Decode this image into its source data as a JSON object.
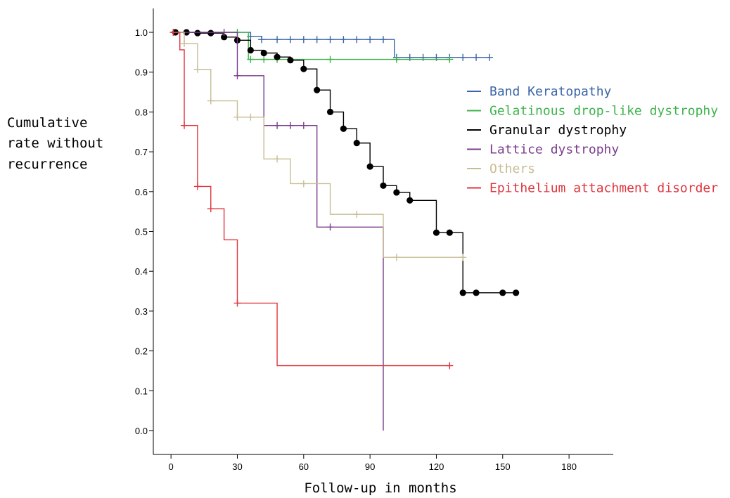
{
  "chart_data": {
    "type": "line",
    "subtype": "kaplan-meier step",
    "title": "",
    "xlabel": "Follow-up in months",
    "ylabel_lines": [
      "Cumulative",
      "rate without",
      "recurrence"
    ],
    "xlim": [
      -8,
      200
    ],
    "ylim": [
      -0.06,
      1.06
    ],
    "x_ticks": [
      0,
      30,
      60,
      90,
      120,
      150,
      180
    ],
    "x_tick_labels": [
      "0",
      "30",
      "60",
      "90",
      "120",
      "150",
      "180"
    ],
    "y_ticks": [
      0.0,
      0.1,
      0.2,
      0.3,
      0.4,
      0.5,
      0.6,
      0.7,
      0.8,
      0.9,
      1.0
    ],
    "y_tick_labels": [
      "0.0",
      "0.1",
      "0.2",
      "0.3",
      "0.4",
      "0.5",
      "0.6",
      "0.7",
      "0.8",
      "0.9",
      "1.0"
    ],
    "grid": false,
    "legend_position": "right",
    "series": [
      {
        "name": "Band Keratopathy",
        "color": "#3a65a8",
        "marker": "plus",
        "steps": [
          [
            0,
            1.0
          ],
          [
            36,
            0.99
          ],
          [
            41,
            0.982
          ],
          [
            101,
            0.937
          ],
          [
            144,
            0.937
          ]
        ],
        "censored": [
          [
            36,
            0.99
          ],
          [
            41,
            0.982
          ],
          [
            48,
            0.982
          ],
          [
            54,
            0.982
          ],
          [
            60,
            0.982
          ],
          [
            66,
            0.982
          ],
          [
            72,
            0.982
          ],
          [
            78,
            0.982
          ],
          [
            84,
            0.982
          ],
          [
            90,
            0.982
          ],
          [
            96,
            0.982
          ],
          [
            102,
            0.937
          ],
          [
            108,
            0.937
          ],
          [
            114,
            0.937
          ],
          [
            120,
            0.937
          ],
          [
            126,
            0.937
          ],
          [
            132,
            0.937
          ],
          [
            138,
            0.937
          ],
          [
            144,
            0.937
          ]
        ]
      },
      {
        "name": "Gelatinous drop-like dystrophy",
        "color": "#3cb34a",
        "marker": "plus",
        "steps": [
          [
            0,
            1.0
          ],
          [
            35,
            0.932
          ],
          [
            126,
            0.932
          ]
        ],
        "censored": [
          [
            30,
            1.0
          ],
          [
            36,
            0.932
          ],
          [
            42,
            0.932
          ],
          [
            48,
            0.932
          ],
          [
            72,
            0.932
          ],
          [
            102,
            0.932
          ],
          [
            126,
            0.932
          ]
        ]
      },
      {
        "name": "Granular dystrophy",
        "color": "#000000",
        "marker": "dot",
        "steps": [
          [
            0,
            1.0
          ],
          [
            12,
            0.998
          ],
          [
            24,
            0.988
          ],
          [
            30,
            0.98
          ],
          [
            36,
            0.955
          ],
          [
            42,
            0.948
          ],
          [
            48,
            0.938
          ],
          [
            54,
            0.93
          ],
          [
            60,
            0.908
          ],
          [
            66,
            0.855
          ],
          [
            72,
            0.8
          ],
          [
            78,
            0.758
          ],
          [
            84,
            0.722
          ],
          [
            90,
            0.663
          ],
          [
            96,
            0.615
          ],
          [
            102,
            0.598
          ],
          [
            108,
            0.578
          ],
          [
            120,
            0.497
          ],
          [
            132,
            0.346
          ],
          [
            156,
            0.346
          ]
        ],
        "censored": [
          [
            2,
            1.0
          ],
          [
            7,
            1.0
          ],
          [
            12,
            0.998
          ],
          [
            18,
            0.998
          ],
          [
            24,
            0.988
          ],
          [
            30,
            0.98
          ],
          [
            36,
            0.955
          ],
          [
            42,
            0.948
          ],
          [
            48,
            0.938
          ],
          [
            54,
            0.93
          ],
          [
            60,
            0.908
          ],
          [
            66,
            0.855
          ],
          [
            72,
            0.8
          ],
          [
            78,
            0.758
          ],
          [
            84,
            0.722
          ],
          [
            90,
            0.663
          ],
          [
            96,
            0.615
          ],
          [
            102,
            0.598
          ],
          [
            108,
            0.578
          ],
          [
            120,
            0.497
          ],
          [
            126,
            0.497
          ],
          [
            132,
            0.346
          ],
          [
            138,
            0.346
          ],
          [
            150,
            0.346
          ],
          [
            156,
            0.346
          ]
        ]
      },
      {
        "name": "Lattice dystrophy",
        "color": "#7a3b8c",
        "marker": "plus",
        "steps": [
          [
            0,
            1.0
          ],
          [
            30,
            0.891
          ],
          [
            42,
            0.766
          ],
          [
            66,
            0.511
          ],
          [
            96,
            0.0
          ]
        ],
        "censored": [
          [
            24,
            1.0
          ],
          [
            30,
            0.891
          ],
          [
            48,
            0.766
          ],
          [
            54,
            0.766
          ],
          [
            60,
            0.766
          ],
          [
            72,
            0.511
          ]
        ]
      },
      {
        "name": "Others",
        "color": "#c8bd94",
        "marker": "plus",
        "steps": [
          [
            0,
            1.0
          ],
          [
            6,
            0.972
          ],
          [
            12,
            0.907
          ],
          [
            18,
            0.828
          ],
          [
            30,
            0.787
          ],
          [
            42,
            0.682
          ],
          [
            54,
            0.62
          ],
          [
            72,
            0.543
          ],
          [
            96,
            0.435
          ],
          [
            132,
            0.435
          ]
        ],
        "censored": [
          [
            6,
            0.972
          ],
          [
            12,
            0.907
          ],
          [
            18,
            0.828
          ],
          [
            30,
            0.787
          ],
          [
            36,
            0.787
          ],
          [
            48,
            0.682
          ],
          [
            60,
            0.62
          ],
          [
            84,
            0.543
          ],
          [
            102,
            0.435
          ],
          [
            132,
            0.435
          ]
        ]
      },
      {
        "name": "Epithelium attachment disorder",
        "color": "#e0353e",
        "marker": "plus",
        "steps": [
          [
            0,
            1.0
          ],
          [
            4,
            0.956
          ],
          [
            6,
            0.766
          ],
          [
            12,
            0.613
          ],
          [
            18,
            0.557
          ],
          [
            24,
            0.479
          ],
          [
            30,
            0.32
          ],
          [
            48,
            0.163
          ],
          [
            126,
            0.163
          ]
        ],
        "censored": [
          [
            1,
            1.0
          ],
          [
            6,
            0.766
          ],
          [
            12,
            0.613
          ],
          [
            18,
            0.557
          ],
          [
            30,
            0.32
          ],
          [
            126,
            0.163
          ]
        ]
      }
    ]
  }
}
